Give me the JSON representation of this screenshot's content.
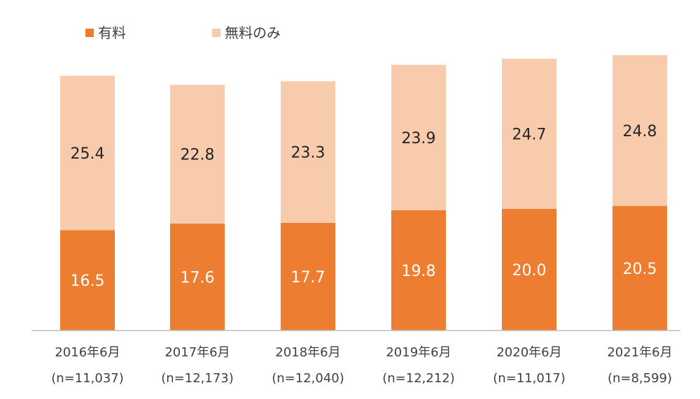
{
  "chart_data": {
    "type": "bar",
    "stacked": true,
    "categories": [
      "2016年6月",
      "2017年6月",
      "2018年6月",
      "2019年6月",
      "2020年6月",
      "2021年6月"
    ],
    "category_sublabels": [
      "(n=11,037)",
      "(n=12,173)",
      "(n=12,040)",
      "(n=12,212)",
      "(n=11,017)",
      "(n=8,599)"
    ],
    "series": [
      {
        "name": "有料",
        "color": "#ed7d31",
        "values": [
          16.5,
          17.6,
          17.7,
          19.8,
          20.0,
          20.5
        ],
        "labels": [
          "16.5",
          "17.6",
          "17.7",
          "19.8",
          "20.0",
          "20.5"
        ]
      },
      {
        "name": "無料のみ",
        "color": "#f8cbad",
        "values": [
          25.4,
          22.8,
          23.3,
          23.9,
          24.7,
          24.8
        ],
        "labels": [
          "25.4",
          "22.8",
          "23.3",
          "23.9",
          "24.7",
          "24.8"
        ]
      }
    ],
    "ylim": [
      0,
      48
    ],
    "legend_position": "top-left",
    "grid": false
  }
}
